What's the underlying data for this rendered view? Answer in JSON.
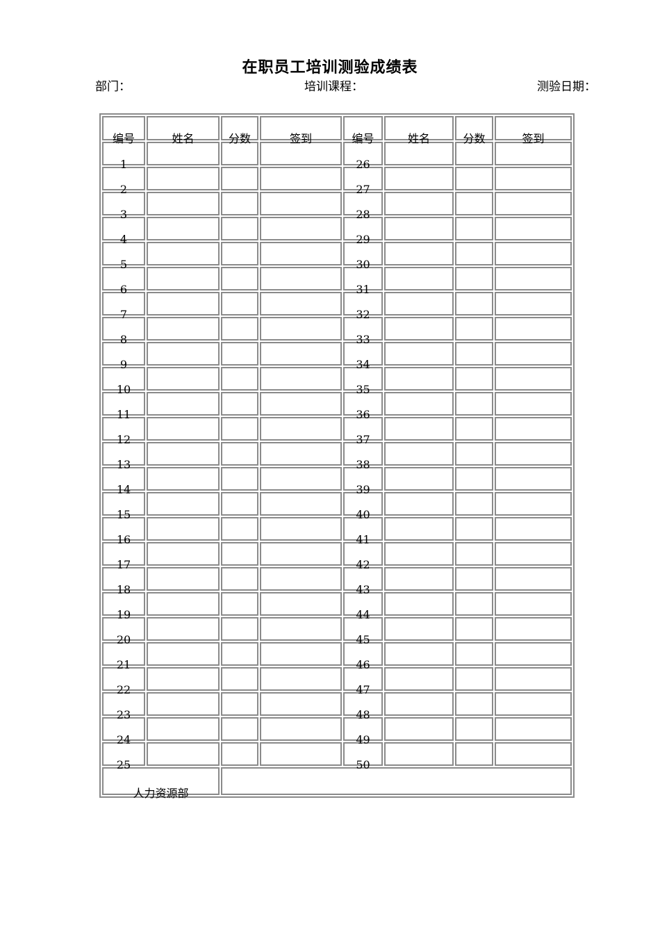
{
  "title": "在职员工培训测验成绩表",
  "labels": {
    "department": "部门：",
    "course": "培训课程：",
    "date": "测验日期："
  },
  "table": {
    "headers": [
      "编号",
      "姓名",
      "分数",
      "签到",
      "编号",
      "姓名",
      "分数",
      "签到"
    ],
    "rows": [
      [
        1,
        26
      ],
      [
        2,
        27
      ],
      [
        3,
        28
      ],
      [
        4,
        29
      ],
      [
        5,
        30
      ],
      [
        6,
        31
      ],
      [
        7,
        32
      ],
      [
        8,
        33
      ],
      [
        9,
        34
      ],
      [
        10,
        35
      ],
      [
        11,
        36
      ],
      [
        12,
        37
      ],
      [
        13,
        38
      ],
      [
        14,
        39
      ],
      [
        15,
        40
      ],
      [
        16,
        41
      ],
      [
        17,
        42
      ],
      [
        18,
        43
      ],
      [
        19,
        44
      ],
      [
        20,
        45
      ],
      [
        21,
        46
      ],
      [
        22,
        47
      ],
      [
        23,
        48
      ],
      [
        24,
        49
      ],
      [
        25,
        50
      ]
    ],
    "footer_left": "人力资源部",
    "footer_right": ""
  },
  "colors": {
    "border": "#8a8a8a",
    "text": "#000000",
    "background": "#ffffff"
  }
}
